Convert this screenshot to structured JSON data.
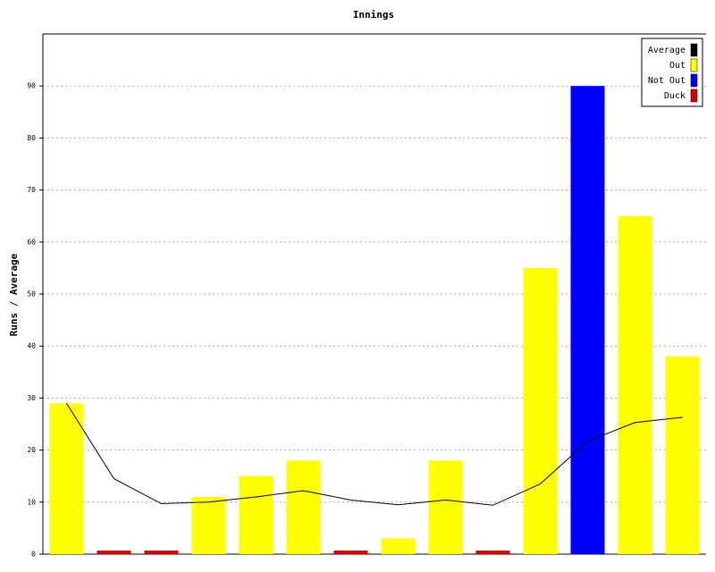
{
  "chart_data": {
    "type": "bar",
    "title": "Innings",
    "y_label": "Runs / Average",
    "categories": [
      null,
      null,
      null,
      null,
      null,
      null,
      null,
      null,
      null,
      null,
      null,
      null,
      null,
      null
    ],
    "series": [
      {
        "name": "Average",
        "type": "line",
        "color": "#000000",
        "values": [
          29,
          14.5,
          9.7,
          10,
          11,
          12.2,
          10.4,
          9.5,
          10.4,
          9.4,
          13.5,
          21.7,
          25.3,
          26.3
        ]
      },
      {
        "name": "Out",
        "type": "bar",
        "color": "#ffff00",
        "values": [
          29,
          null,
          null,
          11,
          15,
          18,
          null,
          3,
          18,
          null,
          55,
          null,
          65,
          38
        ]
      },
      {
        "name": "Not Out",
        "type": "bar",
        "color": "#0000ff",
        "values": [
          null,
          null,
          null,
          null,
          null,
          null,
          null,
          null,
          null,
          null,
          null,
          90,
          null,
          null
        ]
      },
      {
        "name": "Duck",
        "type": "bar",
        "color": "#dd0000",
        "values": [
          null,
          0,
          0,
          null,
          null,
          null,
          0,
          null,
          null,
          0,
          null,
          null,
          null,
          null
        ]
      }
    ],
    "ylim": [
      0,
      100
    ],
    "yticks": [
      0,
      10,
      20,
      30,
      40,
      50,
      60,
      70,
      80,
      90
    ],
    "grid": true,
    "legend": "top-right"
  }
}
